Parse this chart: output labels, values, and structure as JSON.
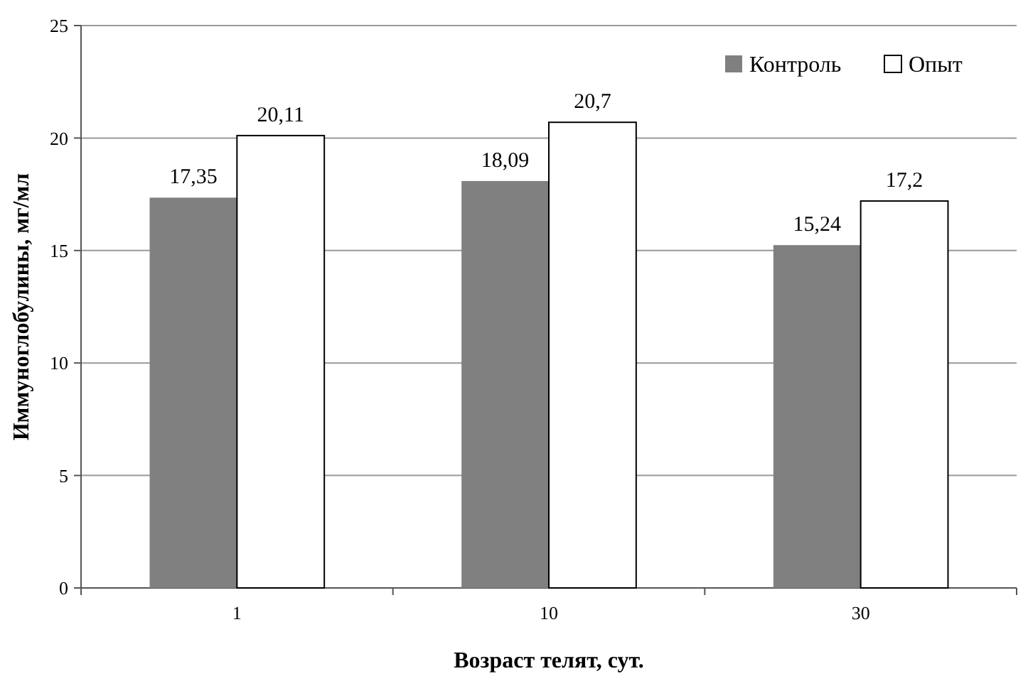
{
  "chart_data": {
    "type": "bar",
    "xlabel": "Возраст телят, сут.",
    "ylabel": "Иммуноглобулины, мг/мл",
    "categories": [
      "1",
      "10",
      "30"
    ],
    "series": [
      {
        "name": "Контроль",
        "color": "#808080",
        "values": [
          17.35,
          18.09,
          15.24
        ],
        "value_labels": [
          "17,35",
          "18,09",
          "15,24"
        ]
      },
      {
        "name": "Опыт",
        "color": "#ffffff",
        "values": [
          20.11,
          20.7,
          17.2
        ],
        "value_labels": [
          "20,11",
          "20,7",
          "17,2"
        ]
      }
    ],
    "ylim": [
      0,
      25
    ],
    "yticks": [
      0,
      5,
      10,
      15,
      20,
      25
    ],
    "grid": "y",
    "legend": "top right"
  }
}
